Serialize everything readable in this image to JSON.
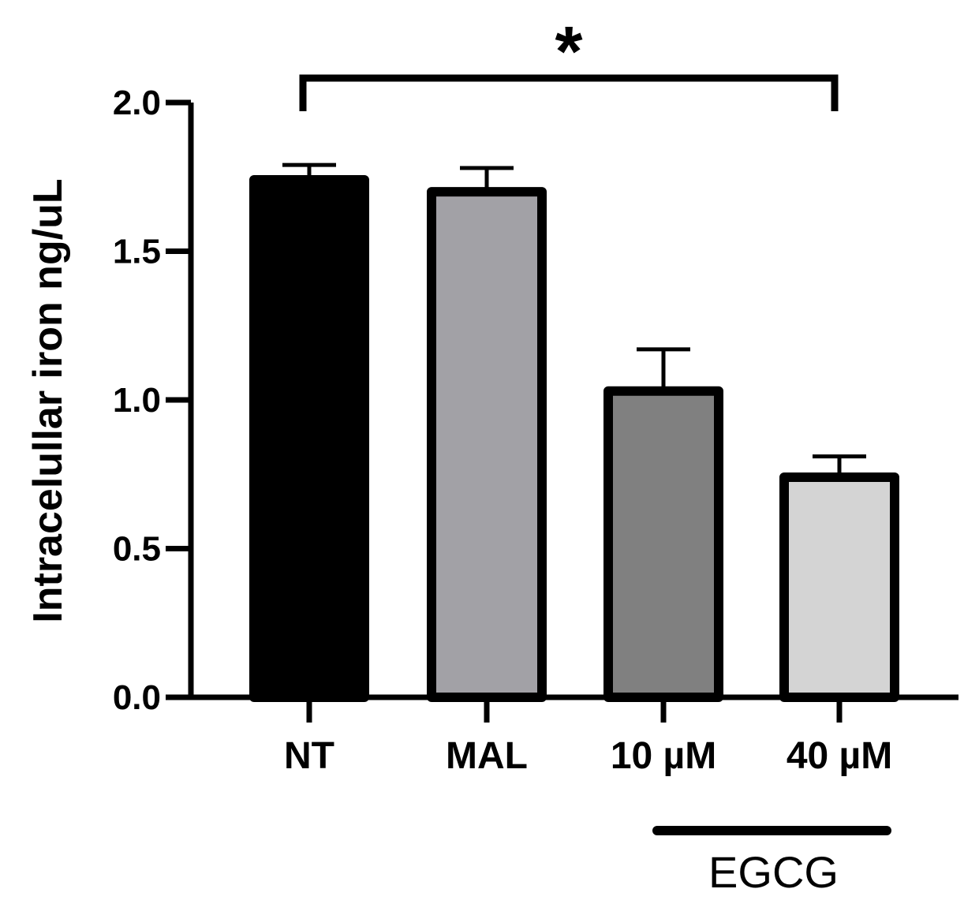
{
  "chart_data": {
    "type": "bar",
    "title": "",
    "xlabel": "",
    "ylabel": "Intracelullar iron ng/uL",
    "ylim": [
      0,
      2.0
    ],
    "yticks": [
      0.0,
      0.5,
      1.0,
      1.5,
      2.0
    ],
    "ytick_labels": [
      "0.0",
      "0.5",
      "1.0",
      "1.5",
      "2.0"
    ],
    "categories": [
      "NT",
      "MAL",
      "10 µM",
      "40 µM"
    ],
    "values": [
      1.74,
      1.7,
      1.03,
      0.74
    ],
    "errors": [
      0.05,
      0.08,
      0.14,
      0.07
    ],
    "colors": [
      "#000000",
      "#a2a1a6",
      "#808080",
      "#d4d4d4"
    ],
    "grid": false,
    "annotations": {
      "group_bracket": {
        "label": "EGCG",
        "categories": [
          "10 µM",
          "40 µM"
        ]
      },
      "significance": {
        "label": "*",
        "between": [
          "NT",
          "40 µM"
        ]
      }
    }
  }
}
